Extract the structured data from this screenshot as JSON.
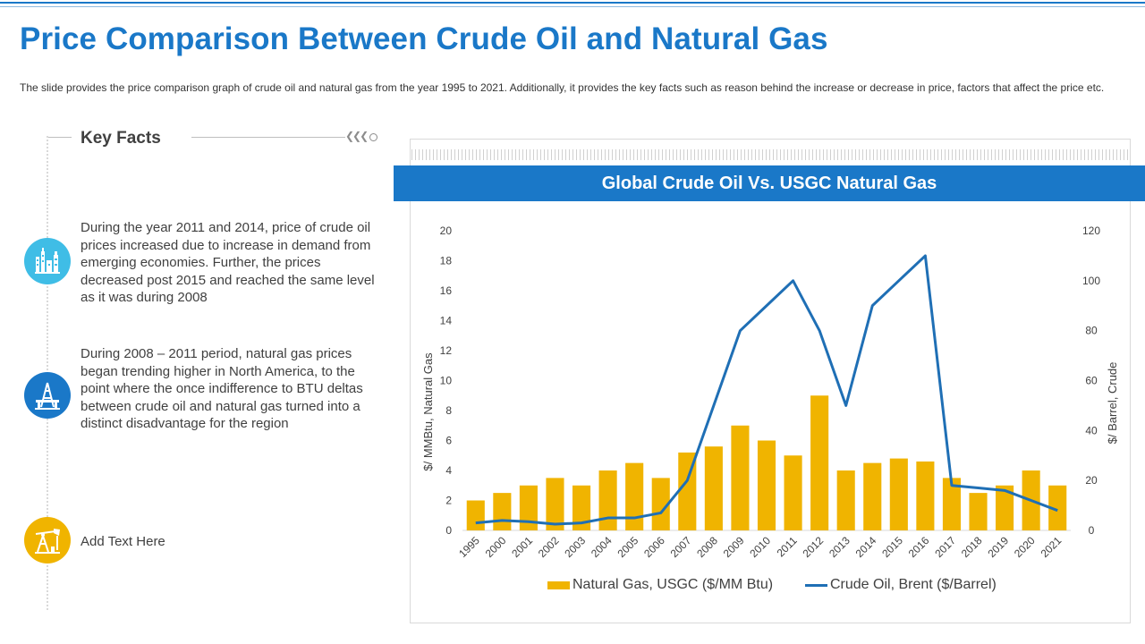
{
  "slide": {
    "title": "Price Comparison Between Crude Oil and Natural Gas",
    "description": "The slide provides the price comparison graph of crude oil and natural gas from the year 1995 to 2021. Additionally, it provides the key facts such as reason behind the increase or decrease in price, factors that affect the price etc."
  },
  "key_facts": {
    "heading": "Key Facts",
    "items": [
      {
        "icon": "refinery-icon",
        "color": "#3fbde6",
        "text": "During the year 2011 and 2014, price of crude oil prices increased due to increase in demand from emerging economies. Further, the prices decreased post 2015 and reached the same level as it was during 2008"
      },
      {
        "icon": "oil-platform-icon",
        "color": "#1a78c8",
        "text": "During 2008 – 2011 period, natural gas prices began trending higher in North America, to the point where the once indifference to BTU deltas between crude oil and natural gas turned into a distinct disadvantage for the region"
      },
      {
        "icon": "oil-pump-icon",
        "color": "#f0b400",
        "text": "Add Text Here"
      }
    ]
  },
  "chart_data": {
    "type": "bar+line",
    "title": "Global Crude Oil Vs. USGC Natural Gas",
    "categories": [
      "1995",
      "2000",
      "2001",
      "2002",
      "2003",
      "2004",
      "2005",
      "2006",
      "2007",
      "2008",
      "2009",
      "2010",
      "2011",
      "2012",
      "2013",
      "2014",
      "2015",
      "2016",
      "2017",
      "2018",
      "2019",
      "2020",
      "2021"
    ],
    "series": [
      {
        "name": "Natural Gas, USGC ($/MM Btu)",
        "type": "bar",
        "axis": "left",
        "color": "#f0b400",
        "values": [
          2,
          2.5,
          3,
          3.5,
          3,
          4,
          4.5,
          3.5,
          5.2,
          5.6,
          7,
          6,
          5,
          9,
          4,
          4.5,
          4.8,
          4.6,
          3.5,
          2.5,
          3,
          4,
          3
        ]
      },
      {
        "name": "Crude Oil, Brent ($/Barrel)",
        "type": "line",
        "axis": "right",
        "color": "#1f6fb5",
        "values": [
          3,
          4,
          3.5,
          2.5,
          3,
          5,
          5,
          7,
          20,
          50,
          80,
          90,
          100,
          80,
          50,
          90,
          100,
          110,
          18,
          17,
          16,
          12,
          8
        ]
      }
    ],
    "ylabel_left": "$/ MMBtu, Natural Gas",
    "ylabel_right": "$/ Barrel, Crude",
    "ylim_left": [
      0,
      20
    ],
    "yticks_left": [
      0,
      2,
      4,
      6,
      8,
      10,
      12,
      14,
      16,
      18,
      20
    ],
    "ylim_right": [
      0,
      120
    ],
    "yticks_right": [
      0,
      20,
      40,
      60,
      80,
      100,
      120
    ],
    "grid": false,
    "legend_position": "bottom"
  },
  "colors": {
    "accent": "#1a78c8",
    "bar": "#f0b400",
    "line": "#1f6fb5"
  }
}
